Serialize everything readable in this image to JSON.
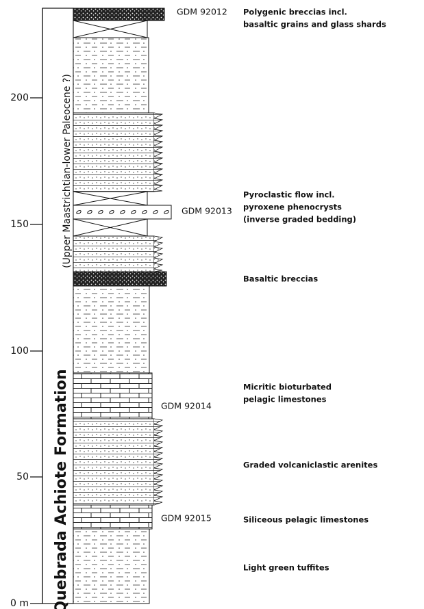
{
  "axis": {
    "ticks": [
      "0 m",
      "50",
      "100",
      "150",
      "200"
    ]
  },
  "column": {
    "formation": "Quebrada Achiote Formation",
    "age": "(Upper Maastrichtian-lower Paleocene ?)"
  },
  "samples": [
    "GDM 92012",
    "GDM 92013",
    "GDM 92014",
    "GDM 92015"
  ],
  "descriptions": [
    {
      "lines": [
        "Polygenic breccias incl.",
        "basaltic grains and glass shards"
      ]
    },
    {
      "lines": [
        "Pyroclastic flow incl.",
        "pyroxene phenocrysts",
        "(inverse graded bedding)"
      ]
    },
    {
      "lines": [
        "Basaltic breccias"
      ]
    },
    {
      "lines": [
        "Micritic bioturbated",
        "pelagic limestones"
      ]
    },
    {
      "lines": [
        "Graded volcaniclastic arenites"
      ]
    },
    {
      "lines": [
        "Siliceous pelagic limestones"
      ]
    },
    {
      "lines": [
        "Light green tuffites"
      ]
    }
  ]
}
